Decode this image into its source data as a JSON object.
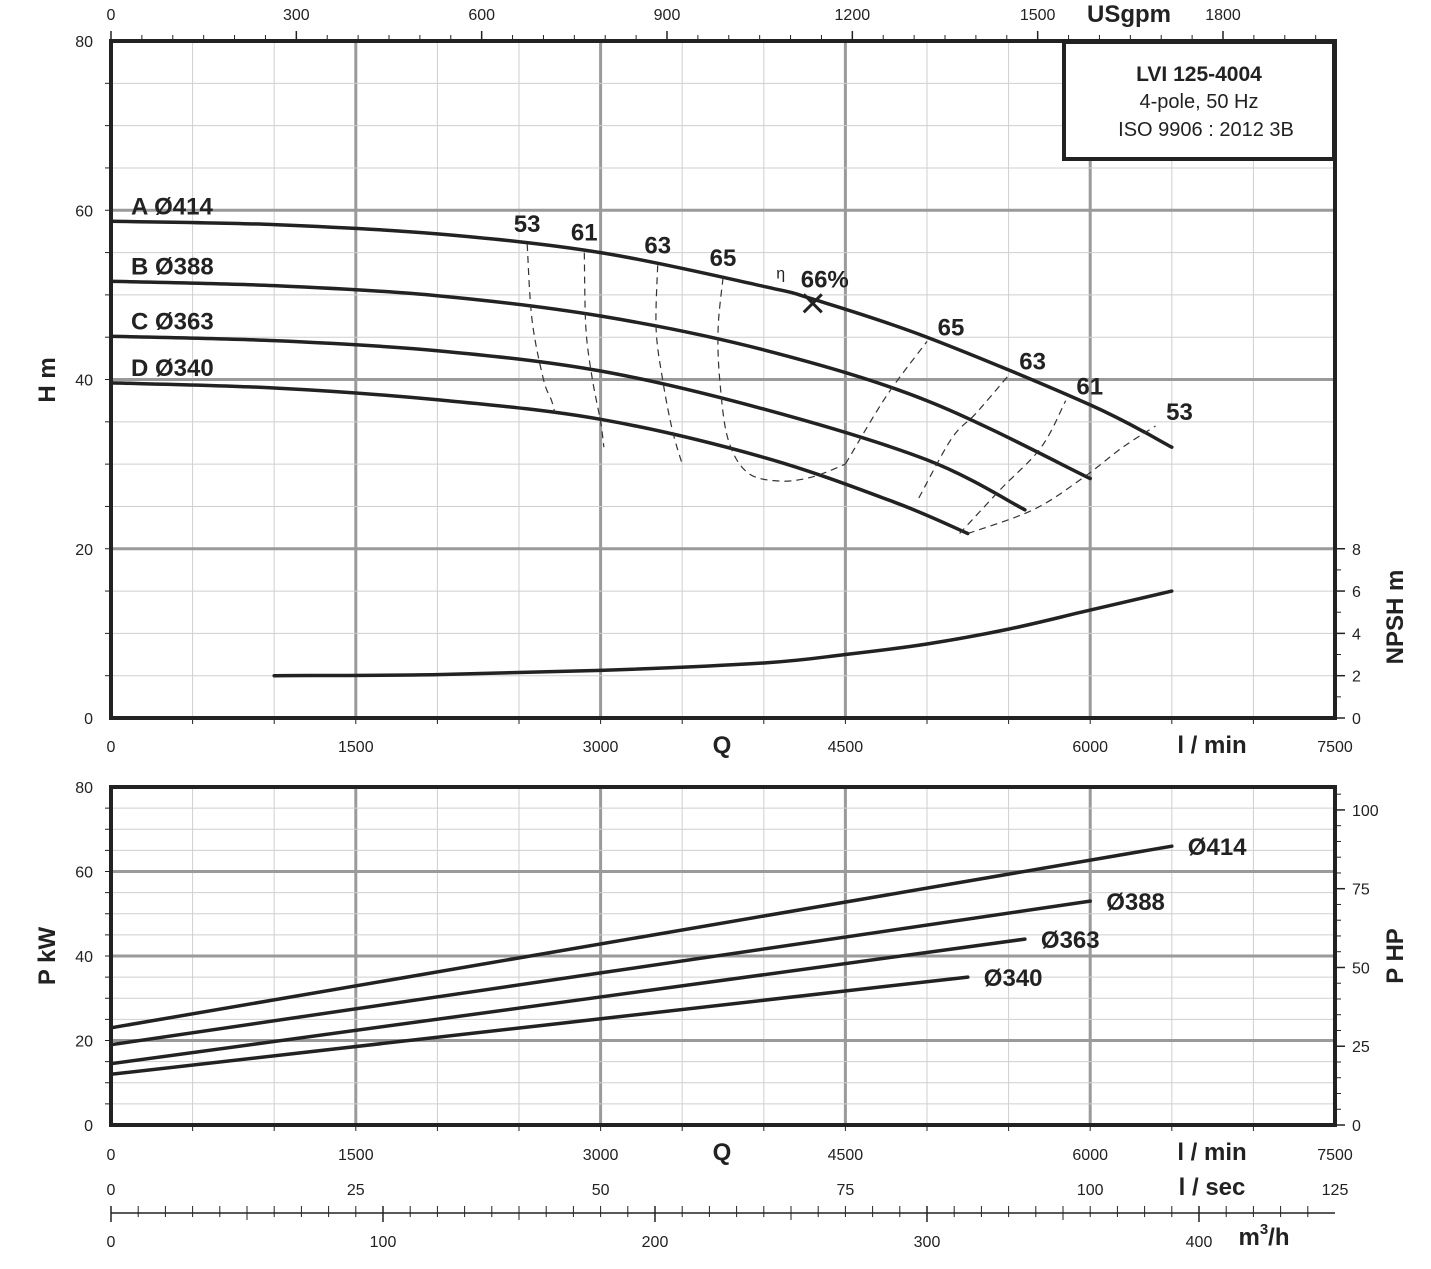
{
  "chart_data": [
    {
      "type": "line",
      "info_box": {
        "title": "LVI 125-4004",
        "lines": [
          "4-pole, 50 Hz",
          "ISO 9906 : 2012 3B"
        ]
      },
      "ylabel": "H m",
      "ylabel_right": "NPSH m",
      "xlabel": "Q",
      "x_unit": "l / min",
      "x_top_unit": "USgpm",
      "xlim": [
        0,
        7500
      ],
      "ylim": [
        0,
        80
      ],
      "y_ticks": [
        "0",
        "20",
        "40",
        "60",
        "80"
      ],
      "x_ticks": [
        "0",
        "1500",
        "3000",
        "4500",
        "6000",
        "7500"
      ],
      "x_top_ticks": [
        "0",
        "300",
        "600",
        "900",
        "1200",
        "1500",
        "1800"
      ],
      "npsh_ticks": [
        "0",
        "2",
        "4",
        "6",
        "8"
      ],
      "grid": true,
      "series": [
        {
          "name": "A Ø414",
          "x": [
            0,
            1000,
            2000,
            3000,
            4000,
            4300,
            5000,
            6000,
            6500
          ],
          "y": [
            58.7,
            58.3,
            57.2,
            55,
            51,
            49.5,
            45,
            37,
            32
          ]
        },
        {
          "name": "B Ø388",
          "x": [
            0,
            1000,
            2000,
            3000,
            4000,
            5000,
            6000
          ],
          "y": [
            51.6,
            51.1,
            49.9,
            47.5,
            43.5,
            37.5,
            28.3
          ]
        },
        {
          "name": "C Ø363",
          "x": [
            0,
            1000,
            2000,
            3000,
            4000,
            5000,
            5600
          ],
          "y": [
            45.1,
            44.6,
            43.4,
            41,
            36.5,
            30.5,
            24.6
          ]
        },
        {
          "name": "D Ø340",
          "x": [
            0,
            1000,
            2000,
            3000,
            4000,
            4800,
            5250
          ],
          "y": [
            39.6,
            39,
            37.6,
            35.3,
            30.8,
            25.5,
            21.8
          ]
        }
      ],
      "npsh": {
        "x": [
          1000,
          2000,
          3000,
          4000,
          4500,
          5000,
          5500,
          6000,
          6500
        ],
        "y": [
          2.0,
          2.05,
          2.25,
          2.6,
          3.0,
          3.5,
          4.2,
          5.1,
          6.0
        ]
      },
      "efficiency_contours": [
        {
          "label": "53",
          "x": [
            2550,
            2580,
            2650,
            2700,
            2720
          ],
          "y": [
            56,
            47,
            40,
            37.5,
            36
          ]
        },
        {
          "label": "61",
          "x": [
            2900,
            2910,
            2950,
            3000,
            3020
          ],
          "y": [
            55,
            46,
            40,
            35,
            32
          ]
        },
        {
          "label": "63",
          "x": [
            3350,
            3340,
            3380,
            3440,
            3500
          ],
          "y": [
            53.5,
            46,
            40,
            34,
            30
          ]
        },
        {
          "label": "65",
          "x": [
            3750,
            3720,
            3730,
            3780,
            3900,
            4100,
            4300,
            4500
          ],
          "y": [
            52,
            46,
            40,
            33,
            29,
            28,
            28.5,
            30
          ]
        },
        {
          "label": "65",
          "x": [
            4500,
            4750,
            5000
          ],
          "y": [
            30,
            38,
            44.5
          ]
        },
        {
          "label": "63",
          "x": [
            4950,
            5150,
            5300,
            5500
          ],
          "y": [
            26,
            33,
            36,
            40.5
          ]
        },
        {
          "label": "61",
          "x": [
            5200,
            5450,
            5700,
            5850
          ],
          "y": [
            21.8,
            27,
            32,
            37.5
          ]
        },
        {
          "label": "53",
          "x": [
            5250,
            5650,
            5950,
            6200,
            6400
          ],
          "y": [
            21.8,
            24.6,
            28.3,
            32,
            34.5
          ]
        }
      ],
      "bep": {
        "label": "66%",
        "symbol": "η",
        "x": 4300,
        "y": 49
      }
    },
    {
      "type": "line",
      "ylabel": "P kW",
      "ylabel_right": "P HP",
      "xlabel": "Q",
      "xlim": [
        0,
        7500
      ],
      "ylim": [
        0,
        80
      ],
      "y_ticks": [
        "0",
        "20",
        "40",
        "60",
        "80"
      ],
      "hp_ticks": [
        "0",
        "25",
        "50",
        "75",
        "100"
      ],
      "x_ticks": [
        "0",
        "1500",
        "3000",
        "4500",
        "6000",
        "7500"
      ],
      "x_unit": "l / min",
      "lsec_ticks": [
        "0",
        "25",
        "50",
        "75",
        "100",
        "125"
      ],
      "lsec_unit": "l / sec",
      "m3h_ticks": [
        "0",
        "100",
        "200",
        "300",
        "400"
      ],
      "m3h_unit": "m",
      "m3h_sup": "3",
      "m3h_suffix": "/h",
      "grid": true,
      "series": [
        {
          "name": "Ø414",
          "x": [
            0,
            6500
          ],
          "y": [
            23,
            66
          ]
        },
        {
          "name": "Ø388",
          "x": [
            0,
            6000
          ],
          "y": [
            19,
            53
          ]
        },
        {
          "name": "Ø363",
          "x": [
            0,
            5600
          ],
          "y": [
            14.5,
            44
          ]
        },
        {
          "name": "Ø340",
          "x": [
            0,
            5250
          ],
          "y": [
            12,
            35
          ]
        }
      ]
    }
  ]
}
